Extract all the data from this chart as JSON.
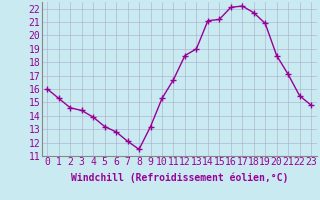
{
  "x": [
    0,
    1,
    2,
    3,
    4,
    5,
    6,
    7,
    8,
    9,
    10,
    11,
    12,
    13,
    14,
    15,
    16,
    17,
    18,
    19,
    20,
    21,
    22,
    23
  ],
  "y": [
    16.0,
    15.3,
    14.6,
    14.4,
    13.9,
    13.2,
    12.8,
    12.1,
    11.5,
    13.2,
    15.3,
    16.7,
    18.5,
    19.0,
    21.1,
    21.2,
    22.1,
    22.2,
    21.7,
    20.9,
    18.5,
    17.1,
    15.5,
    14.8
  ],
  "line_color": "#990099",
  "marker": "+",
  "marker_size": 4,
  "marker_linewidth": 1.0,
  "line_width": 1.0,
  "bg_color": "#c8eaf0",
  "grid_color": "#aaaacc",
  "xlabel": "Windchill (Refroidissement éolien,°C)",
  "xlabel_fontsize": 7,
  "tick_fontsize": 7,
  "xlim": [
    -0.5,
    23.5
  ],
  "ylim": [
    11,
    22.5
  ],
  "yticks": [
    11,
    12,
    13,
    14,
    15,
    16,
    17,
    18,
    19,
    20,
    21,
    22
  ],
  "xticks": [
    0,
    1,
    2,
    3,
    4,
    5,
    6,
    7,
    8,
    9,
    10,
    11,
    12,
    13,
    14,
    15,
    16,
    17,
    18,
    19,
    20,
    21,
    22,
    23
  ]
}
